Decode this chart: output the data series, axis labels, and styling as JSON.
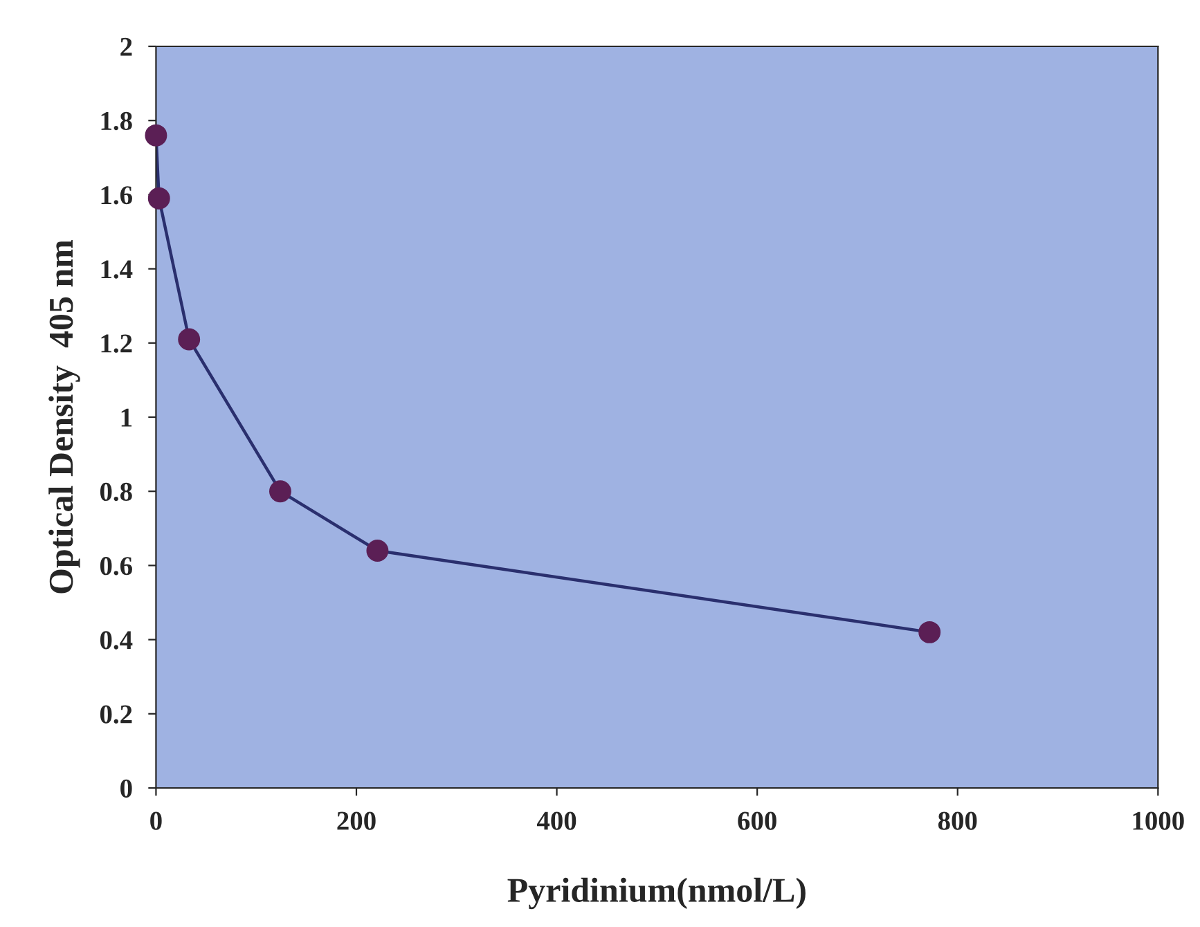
{
  "chart_data": {
    "type": "scatter",
    "xlabel": "Pyridinium(nmol/L)",
    "ylabel": "Optical Density  405 nm",
    "series": [
      {
        "type": "line",
        "marker": "none",
        "color": "#2a2f6e",
        "x": [
          0,
          3,
          33,
          124,
          221,
          772
        ],
        "values": [
          1.76,
          1.59,
          1.21,
          0.8,
          0.64,
          0.42
        ]
      },
      {
        "color": "#5b1f55",
        "x": [
          0,
          3,
          33,
          124,
          221,
          772
        ],
        "values": [
          1.76,
          1.59,
          1.21,
          0.8,
          0.64,
          0.42
        ]
      }
    ],
    "marker": "circle",
    "line_style": "solid",
    "xlim": [
      0,
      1000
    ],
    "xticks": [
      0,
      200,
      400,
      600,
      800,
      1000
    ],
    "ylim": [
      0,
      2
    ],
    "yticks": [
      0,
      0.2,
      0.4,
      0.6,
      0.8,
      1,
      1.2,
      1.4,
      1.6,
      1.8,
      2
    ]
  }
}
